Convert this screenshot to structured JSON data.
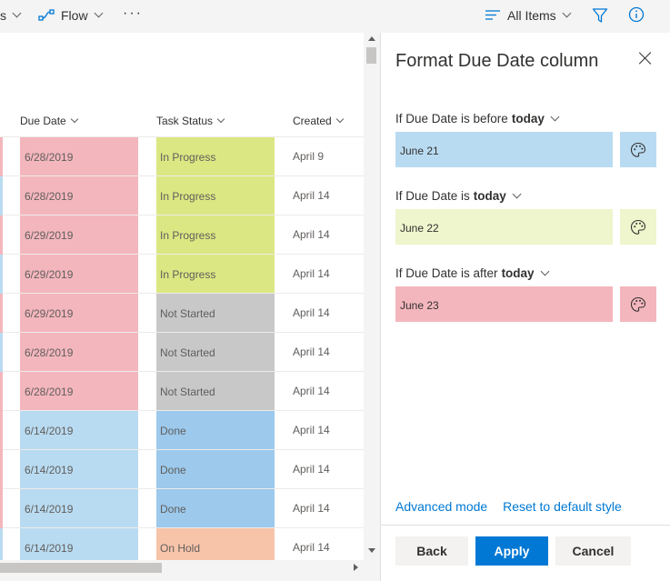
{
  "topbar": {
    "cutoff_label": "s",
    "flow_label": "Flow",
    "more_label": "···",
    "view_label": "All Items"
  },
  "list": {
    "headers": {
      "due_date": "Due Date",
      "task_status": "Task Status",
      "created": "Created"
    },
    "rows": [
      {
        "strip": "#f4b6bd",
        "due": "6/28/2019",
        "due_color": "#f4b6bd",
        "status": "In Progress",
        "status_color": "#dbe782",
        "created": "April 9"
      },
      {
        "strip": "#b9dbf1",
        "due": "6/28/2019",
        "due_color": "#f4b6bd",
        "status": "In Progress",
        "status_color": "#dbe782",
        "created": "April 14"
      },
      {
        "strip": "#f4b6bd",
        "due": "6/29/2019",
        "due_color": "#f4b6bd",
        "status": "In Progress",
        "status_color": "#dbe782",
        "created": "April 14"
      },
      {
        "strip": "#b9dbf1",
        "due": "6/29/2019",
        "due_color": "#f4b6bd",
        "status": "In Progress",
        "status_color": "#dbe782",
        "created": "April 14"
      },
      {
        "strip": "#f4b6bd",
        "due": "6/29/2019",
        "due_color": "#f4b6bd",
        "status": "Not Started",
        "status_color": "#c8c8c8",
        "created": "April 14"
      },
      {
        "strip": "#b9dbf1",
        "due": "6/28/2019",
        "due_color": "#f4b6bd",
        "status": "Not Started",
        "status_color": "#c8c8c8",
        "created": "April 14"
      },
      {
        "strip": "#f4b6bd",
        "due": "6/28/2019",
        "due_color": "#f4b6bd",
        "status": "Not Started",
        "status_color": "#c8c8c8",
        "created": "April 14"
      },
      {
        "strip": "#f4b6bd",
        "due": "6/14/2019",
        "due_color": "#b9dbf1",
        "status": "Done",
        "status_color": "#9cc9ec",
        "created": "April 14"
      },
      {
        "strip": "#f4b6bd",
        "due": "6/14/2019",
        "due_color": "#b9dbf1",
        "status": "Done",
        "status_color": "#9cc9ec",
        "created": "April 14"
      },
      {
        "strip": "#f4b6bd",
        "due": "6/14/2019",
        "due_color": "#b9dbf1",
        "status": "Done",
        "status_color": "#9cc9ec",
        "created": "April 14"
      },
      {
        "strip": "#b9dbf1",
        "due": "6/14/2019",
        "due_color": "#b9dbf1",
        "status": "On Hold",
        "status_color": "#f7c4aa",
        "created": "April 14"
      }
    ]
  },
  "panel": {
    "title": "Format Due Date column",
    "rules": [
      {
        "prefix": "If Due Date is before",
        "keyword": "today",
        "value": "June 21",
        "color": "#b9dbf1"
      },
      {
        "prefix": "If Due Date is",
        "keyword": "today",
        "value": "June 22",
        "color": "#eff5cc"
      },
      {
        "prefix": "If Due Date is after",
        "keyword": "today",
        "value": "June 23",
        "color": "#f4b6bd"
      }
    ],
    "advanced_mode": "Advanced mode",
    "reset": "Reset to default style",
    "back": "Back",
    "apply": "Apply",
    "cancel": "Cancel"
  },
  "colors": {
    "accent": "#0078d4"
  },
  "icons": [
    "flow-icon",
    "list-view-icon",
    "filter-icon",
    "info-icon",
    "close-icon",
    "palette-icon"
  ]
}
